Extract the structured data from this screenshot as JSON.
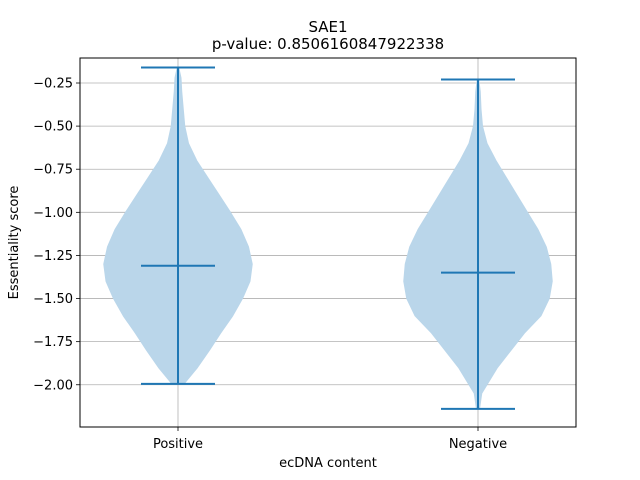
{
  "chart_data": {
    "type": "violin",
    "title": "SAE1",
    "subtitle": "p-value: 0.8506160847922338",
    "xlabel": "ecDNA content",
    "ylabel": "Essentiality score",
    "categories": [
      "Positive",
      "Negative"
    ],
    "ylim": [
      -2.245,
      -0.105
    ],
    "yticks": [
      -0.25,
      -0.5,
      -0.75,
      -1.0,
      -1.25,
      -1.5,
      -1.75,
      -2.0
    ],
    "ytick_labels": [
      "−0.25",
      "−0.50",
      "−0.75",
      "−1.00",
      "−1.25",
      "−1.50",
      "−1.75",
      "−2.00"
    ],
    "grid": true,
    "color": "#1f77b4",
    "body_color": "#bad6ea",
    "violins": [
      {
        "name": "Positive",
        "max": -0.16,
        "min": -1.995,
        "median": -1.31,
        "profile": [
          [
            -0.16,
            0.01
          ],
          [
            -0.22,
            0.04
          ],
          [
            -0.3,
            0.05
          ],
          [
            -0.4,
            0.07
          ],
          [
            -0.5,
            0.09
          ],
          [
            -0.6,
            0.14
          ],
          [
            -0.7,
            0.25
          ],
          [
            -0.8,
            0.4
          ],
          [
            -0.9,
            0.55
          ],
          [
            -1.0,
            0.7
          ],
          [
            -1.1,
            0.84
          ],
          [
            -1.2,
            0.94
          ],
          [
            -1.3,
            0.99
          ],
          [
            -1.4,
            0.96
          ],
          [
            -1.5,
            0.86
          ],
          [
            -1.6,
            0.73
          ],
          [
            -1.7,
            0.57
          ],
          [
            -1.8,
            0.42
          ],
          [
            -1.9,
            0.26
          ],
          [
            -1.995,
            0.08
          ]
        ]
      },
      {
        "name": "Negative",
        "max": -0.23,
        "min": -2.14,
        "median": -1.35,
        "profile": [
          [
            -0.23,
            0.01
          ],
          [
            -0.3,
            0.03
          ],
          [
            -0.4,
            0.04
          ],
          [
            -0.5,
            0.06
          ],
          [
            -0.6,
            0.12
          ],
          [
            -0.7,
            0.24
          ],
          [
            -0.8,
            0.38
          ],
          [
            -0.9,
            0.52
          ],
          [
            -1.0,
            0.66
          ],
          [
            -1.1,
            0.8
          ],
          [
            -1.2,
            0.91
          ],
          [
            -1.3,
            0.97
          ],
          [
            -1.4,
            0.99
          ],
          [
            -1.5,
            0.95
          ],
          [
            -1.6,
            0.84
          ],
          [
            -1.7,
            0.62
          ],
          [
            -1.8,
            0.44
          ],
          [
            -1.9,
            0.26
          ],
          [
            -2.0,
            0.12
          ],
          [
            -2.05,
            0.05
          ],
          [
            -2.14,
            0.02
          ]
        ]
      }
    ]
  }
}
